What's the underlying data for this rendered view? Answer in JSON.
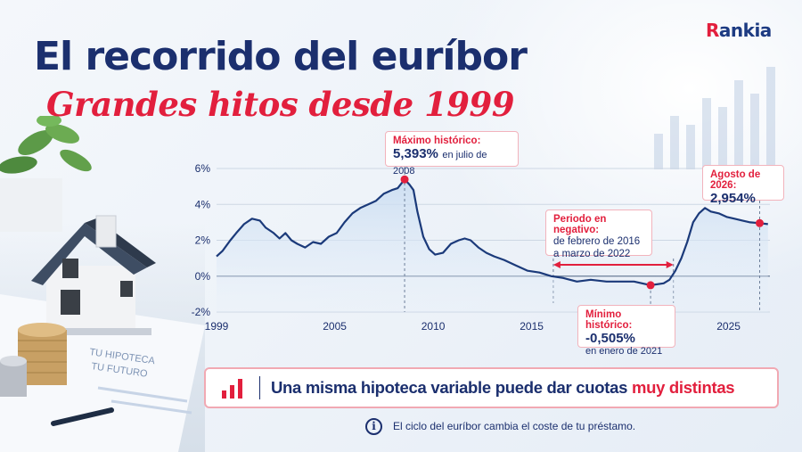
{
  "brand": {
    "name_first": "R",
    "name_rest": "ankia"
  },
  "title": "El recorrido del euríbor",
  "subtitle": "Grandes hitos desde 1999",
  "illustration": {
    "house_icon": "house-icon",
    "coins_icon": "coins-icon",
    "plant_icon": "plant-icon",
    "paper_line1": "TU HIPOTECA",
    "paper_line2": "TU FUTURO"
  },
  "chart_data": {
    "type": "line",
    "xlim": [
      1999,
      2027.1
    ],
    "ylim": [
      -2,
      6
    ],
    "xticks": [
      "1999",
      "2005",
      "2010",
      "2015",
      "2025"
    ],
    "xtick_values": [
      1999,
      2005,
      2010,
      2015,
      2025
    ],
    "yticks": [
      "6%",
      "4%",
      "2%",
      "0%",
      "-2%"
    ],
    "ytick_values": [
      6,
      4,
      2,
      0,
      -2
    ],
    "grid": true,
    "series": [
      {
        "color": "#1b3a7a",
        "x": [
          1999.0,
          1999.3,
          1999.7,
          2000.0,
          2000.4,
          2000.8,
          2001.2,
          2001.5,
          2001.9,
          2002.2,
          2002.5,
          2002.8,
          2003.1,
          2003.5,
          2003.9,
          2004.3,
          2004.7,
          2005.1,
          2005.5,
          2005.9,
          2006.3,
          2006.7,
          2007.1,
          2007.5,
          2007.9,
          2008.2,
          2008.55,
          2008.8,
          2009.0,
          2009.2,
          2009.5,
          2009.8,
          2010.1,
          2010.5,
          2010.9,
          2011.3,
          2011.6,
          2011.9,
          2012.3,
          2012.7,
          2013.1,
          2013.6,
          2014.2,
          2014.8,
          2015.4,
          2016.0,
          2016.6,
          2017.3,
          2018.0,
          2018.8,
          2019.5,
          2020.2,
          2021.04,
          2021.7,
          2022.0,
          2022.3,
          2022.6,
          2022.9,
          2023.2,
          2023.5,
          2023.8,
          2024.1,
          2024.5,
          2024.9,
          2025.3,
          2025.7,
          2026.1,
          2026.58,
          2027.0
        ],
        "y": [
          1.1,
          1.4,
          2.0,
          2.4,
          2.9,
          3.2,
          3.1,
          2.7,
          2.4,
          2.1,
          2.4,
          2.0,
          1.8,
          1.6,
          1.9,
          1.8,
          2.2,
          2.4,
          3.0,
          3.5,
          3.8,
          4.0,
          4.2,
          4.6,
          4.8,
          4.9,
          5.393,
          5.1,
          4.8,
          3.6,
          2.2,
          1.5,
          1.2,
          1.3,
          1.8,
          2.0,
          2.1,
          2.0,
          1.6,
          1.3,
          1.1,
          0.9,
          0.6,
          0.3,
          0.2,
          0.0,
          -0.1,
          -0.3,
          -0.2,
          -0.3,
          -0.3,
          -0.3,
          -0.505,
          -0.4,
          -0.2,
          0.3,
          1.0,
          1.9,
          3.0,
          3.5,
          3.8,
          3.6,
          3.5,
          3.3,
          3.2,
          3.1,
          3.0,
          2.954,
          2.9
        ]
      }
    ],
    "annotations": {
      "max": {
        "title": "Máximo histórico:",
        "value": "5,393%",
        "suffix": "en julio de 2008",
        "x": 2008.55,
        "y": 5.393
      },
      "min": {
        "title": "Mínimo histórico:",
        "value": "-0,505%",
        "suffix": "en enero de 2021",
        "x": 2021.04,
        "y": -0.505
      },
      "last": {
        "title": "Agosto de 2026:",
        "value": "2,954%",
        "x": 2026.58,
        "y": 2.954
      },
      "negative": {
        "title": "Periodo en negativo:",
        "line1": "de febrero de 2016",
        "line2": "a marzo de 2022",
        "x_start": 2016.1,
        "x_end": 2022.2
      }
    },
    "colors": {
      "line": "#1b3a7a",
      "accent": "#e21f3d",
      "area_top": "#c9dcf1"
    }
  },
  "banner": {
    "icon": "bar-chart-icon",
    "text_main": "Una misma hipoteca variable puede dar cuotas ",
    "text_emphasis": "muy distintas"
  },
  "note": {
    "icon": "info-icon",
    "icon_glyph": "i",
    "text": "El ciclo del euríbor cambia el coste de tu préstamo."
  }
}
